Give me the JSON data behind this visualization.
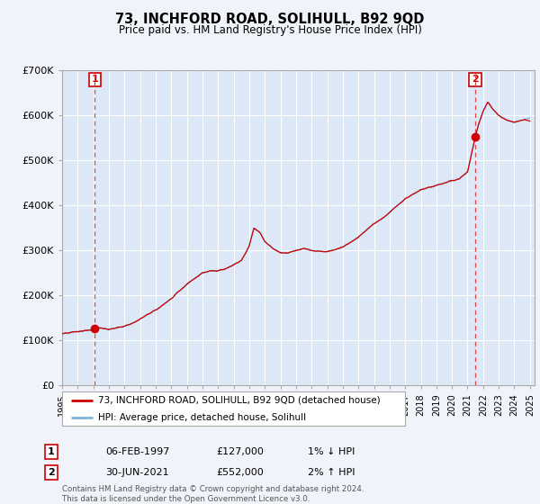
{
  "title": "73, INCHFORD ROAD, SOLIHULL, B92 9QD",
  "subtitle": "Price paid vs. HM Land Registry's House Price Index (HPI)",
  "background_color": "#f0f4fa",
  "plot_bg_color": "#dce8f5",
  "ylim": [
    0,
    700000
  ],
  "yticks": [
    0,
    100000,
    200000,
    300000,
    400000,
    500000,
    600000,
    700000
  ],
  "ytick_labels": [
    "£0",
    "£100K",
    "£200K",
    "£300K",
    "£400K",
    "£500K",
    "£600K",
    "£700K"
  ],
  "transaction1_date": 1997.09,
  "transaction1_price": 127000,
  "transaction1_label": "1",
  "transaction2_date": 2021.49,
  "transaction2_price": 552000,
  "transaction2_label": "2",
  "legend_line1": "73, INCHFORD ROAD, SOLIHULL, B92 9QD (detached house)",
  "legend_line2": "HPI: Average price, detached house, Solihull",
  "table_row1_num": "1",
  "table_row1_date": "06-FEB-1997",
  "table_row1_price": "£127,000",
  "table_row1_hpi": "1% ↓ HPI",
  "table_row2_num": "2",
  "table_row2_date": "30-JUN-2021",
  "table_row2_price": "£552,000",
  "table_row2_hpi": "2% ↑ HPI",
  "footer": "Contains HM Land Registry data © Crown copyright and database right 2024.\nThis data is licensed under the Open Government Licence v3.0.",
  "line_color_red": "#cc0000",
  "line_color_blue": "#7fb3d9",
  "grid_color": "#ffffff",
  "dashed_color": "#dd4444"
}
